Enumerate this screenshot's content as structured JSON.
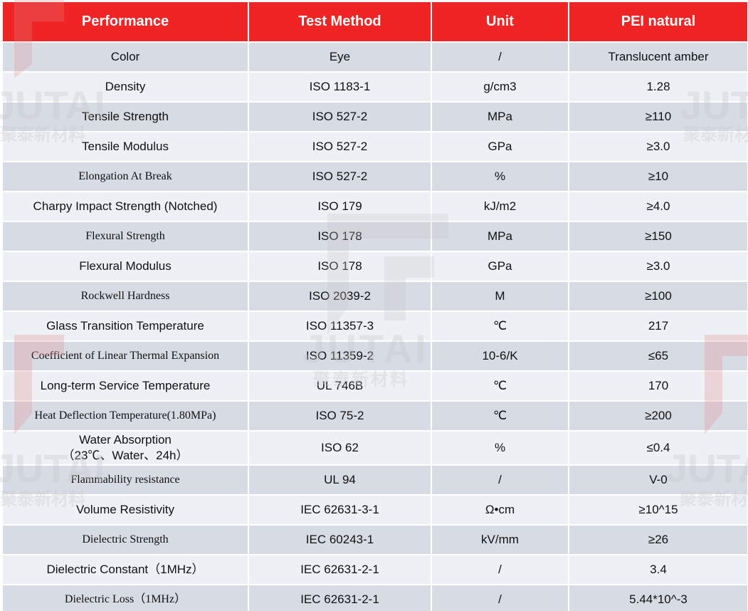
{
  "header": {
    "performance": "Performance",
    "test_method": "Test Method",
    "unit": "Unit",
    "value": "PEI natural"
  },
  "rows": [
    {
      "performance": "Color",
      "method": "Eye",
      "unit": "/",
      "value": "Translucent amber",
      "serif": false
    },
    {
      "performance": "Density",
      "method": "ISO 1183-1",
      "unit": "g/cm3",
      "value": "1.28",
      "serif": false
    },
    {
      "performance": "Tensile Strength",
      "method": "ISO 527-2",
      "unit": "MPa",
      "value": "≥110",
      "serif": false
    },
    {
      "performance": "Tensile Modulus",
      "method": "ISO 527-2",
      "unit": "GPa",
      "value": "≥3.0",
      "serif": false
    },
    {
      "performance": "Elongation At Break",
      "method": "ISO 527-2",
      "unit": "%",
      "value": "≥10",
      "serif": true
    },
    {
      "performance": "Charpy Impact Strength (Notched)",
      "method": "ISO 179",
      "unit": "kJ/m2",
      "value": "≥4.0",
      "serif": false
    },
    {
      "performance": "Flexural Strength",
      "method": "ISO 178",
      "unit": "MPa",
      "value": "≥150",
      "serif": true
    },
    {
      "performance": "Flexural Modulus",
      "method": "ISO 178",
      "unit": "GPa",
      "value": "≥3.0",
      "serif": false
    },
    {
      "performance": "Rockwell Hardness",
      "method": "ISO 2039-2",
      "unit": "M",
      "value": "≥100",
      "serif": true
    },
    {
      "performance": "Glass Transition Temperature",
      "method": "ISO 11357-3",
      "unit": "℃",
      "value": "217",
      "serif": false
    },
    {
      "performance": "Coefficient of Linear Thermal Expansion",
      "method": "ISO 11359-2",
      "unit": "10-6/K",
      "value": "≤65",
      "serif": true
    },
    {
      "performance": "Long-term Service Temperature",
      "method": "UL 746B",
      "unit": "℃",
      "value": "170",
      "serif": false
    },
    {
      "performance": "Heat Deflection Temperature(1.80MPa)",
      "method": "ISO 75-2",
      "unit": "℃",
      "value": "≥200",
      "serif": true
    },
    {
      "performance": "Water Absorption",
      "performance_line2": "（23℃、Water、24h）",
      "method": "ISO 62",
      "unit": "%",
      "value": "≤0.4",
      "serif": false
    },
    {
      "performance": "Flammability resistance",
      "method": "UL 94",
      "unit": "/",
      "value": "V-0",
      "serif": true
    },
    {
      "performance": "Volume Resistivity",
      "method": "IEC 62631-3-1",
      "unit": "Ω•cm",
      "value": "≥10^15",
      "serif": false
    },
    {
      "performance": "Dielectric Strength",
      "method": "IEC 60243-1",
      "unit": "kV/mm",
      "value": "≥26",
      "serif": true
    },
    {
      "performance": "Dielectric Constant（1MHz）",
      "method": "IEC 62631-2-1",
      "unit": "/",
      "value": "3.4",
      "serif": false
    },
    {
      "performance": "Dielectric Loss（1MHz）",
      "method": "IEC 62631-2-1",
      "unit": "/",
      "value": "5.44*10^-3",
      "serif": true
    }
  ],
  "watermark": {
    "brand": "JUTAI",
    "brand_cn": "聚泰新材料"
  },
  "colors": {
    "header_bg": "#f02424",
    "row_odd": "#d6dbe4",
    "row_even": "#edf0f4"
  }
}
